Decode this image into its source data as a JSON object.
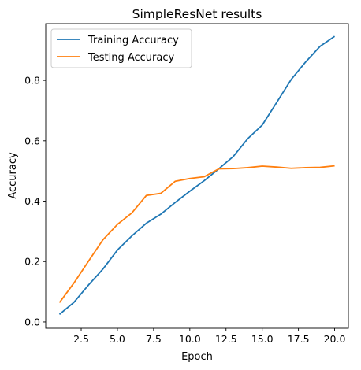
{
  "chart_data": {
    "type": "line",
    "title": "SimpleResNet results",
    "xlabel": "Epoch",
    "ylabel": "Accuracy",
    "xlim": [
      0.05,
      20.95
    ],
    "ylim": [
      -0.021,
      0.988
    ],
    "xticks": [
      2.5,
      5.0,
      7.5,
      10.0,
      12.5,
      15.0,
      17.5,
      20.0
    ],
    "xtick_labels": [
      "2.5",
      "5.0",
      "7.5",
      "10.0",
      "12.5",
      "15.0",
      "17.5",
      "20.0"
    ],
    "yticks": [
      0.0,
      0.2,
      0.4,
      0.6,
      0.8
    ],
    "ytick_labels": [
      "0.0",
      "0.2",
      "0.4",
      "0.6",
      "0.8"
    ],
    "grid": false,
    "legend_position": "top-left",
    "x": [
      1,
      2,
      3,
      4,
      5,
      6,
      7,
      8,
      9,
      10,
      11,
      12,
      13,
      14,
      15,
      16,
      17,
      18,
      19,
      20
    ],
    "series": [
      {
        "name": "Training Accuracy",
        "color": "#1f77b4",
        "values": [
          0.025,
          0.065,
          0.122,
          0.175,
          0.238,
          0.285,
          0.327,
          0.357,
          0.396,
          0.433,
          0.468,
          0.507,
          0.548,
          0.607,
          0.652,
          0.727,
          0.803,
          0.861,
          0.913,
          0.946
        ]
      },
      {
        "name": "Testing Accuracy",
        "color": "#ff7f0e",
        "values": [
          0.064,
          0.129,
          0.201,
          0.272,
          0.323,
          0.361,
          0.419,
          0.426,
          0.466,
          0.475,
          0.481,
          0.507,
          0.508,
          0.511,
          0.516,
          0.513,
          0.509,
          0.511,
          0.512,
          0.517
        ]
      }
    ]
  }
}
